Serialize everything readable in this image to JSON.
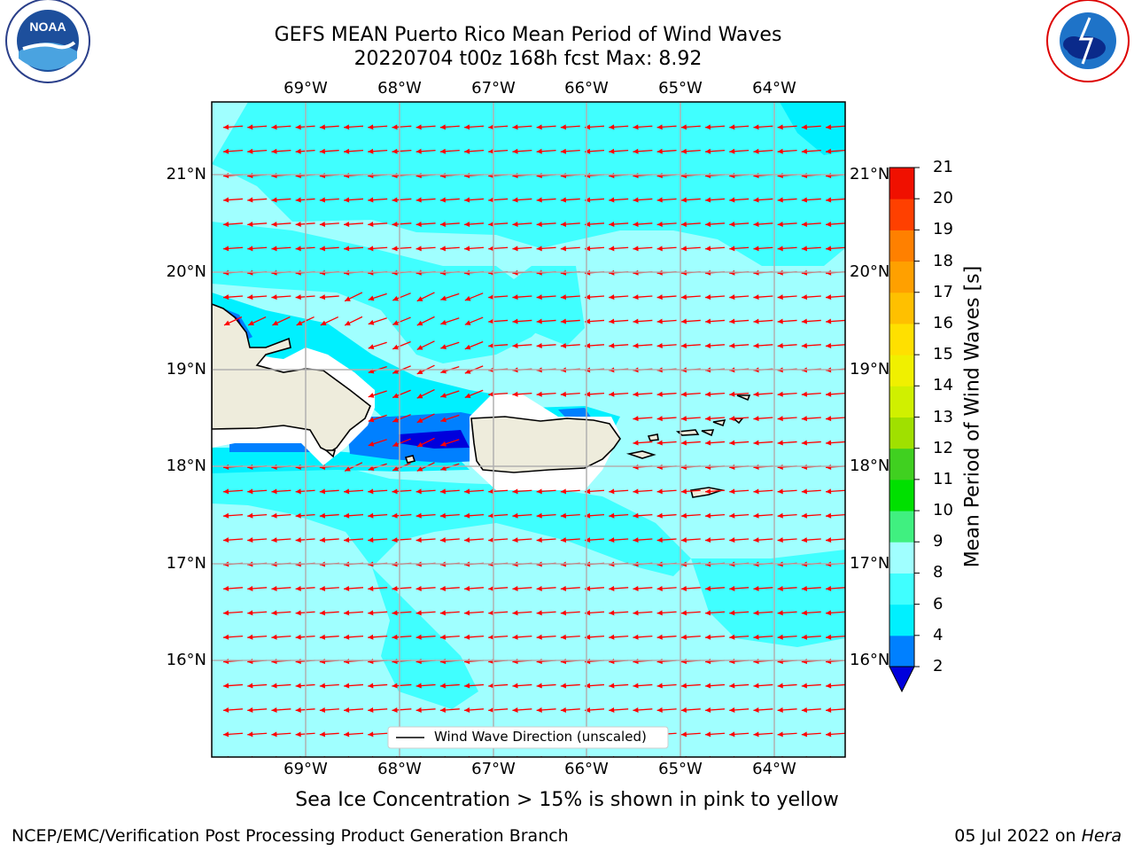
{
  "title_line1": "GEFS MEAN Puerto Rico Mean Period of Wind Waves",
  "title_line2": "20220704 t00z 168h fcst   Max: 8.92",
  "longitude_labels": [
    "69°W",
    "68°W",
    "67°W",
    "66°W",
    "65°W",
    "64°W"
  ],
  "latitude_labels": [
    "21°N",
    "20°N",
    "19°N",
    "18°N",
    "17°N",
    "16°N"
  ],
  "legend": {
    "entry": "Wind Wave Direction (unscaled)"
  },
  "colorbar": {
    "label": "Mean Period of Wind Waves [s]",
    "ticks": [
      "2",
      "4",
      "6",
      "8",
      "9",
      "10",
      "11",
      "12",
      "13",
      "14",
      "15",
      "16",
      "17",
      "18",
      "19",
      "20",
      "21"
    ],
    "colors": [
      "#0000dc",
      "#0080ff",
      "#00f0ff",
      "#40ffff",
      "#a0ffff",
      "#40f080",
      "#00e000",
      "#40d020",
      "#a0e000",
      "#d0f000",
      "#f0f000",
      "#ffe000",
      "#ffc000",
      "#ffa000",
      "#ff8000",
      "#ff4000",
      "#f01000"
    ],
    "extend": "min"
  },
  "sea_ice_note": "Sea Ice Concentration > 15% is shown in pink to yellow",
  "footer_left": "NCEP/EMC/Verification Post Processing Product Generation Branch",
  "footer_date": "05 Jul 2022 on",
  "footer_host": "Hera",
  "logos": {
    "left": "noaa-logo",
    "right": "nws-logo"
  },
  "map": {
    "lon_range": [
      -70,
      -63.25
    ],
    "lat_range": [
      15,
      21.75
    ],
    "arrow_color": "#ff0000",
    "ocean_color": "#a0ffff"
  }
}
